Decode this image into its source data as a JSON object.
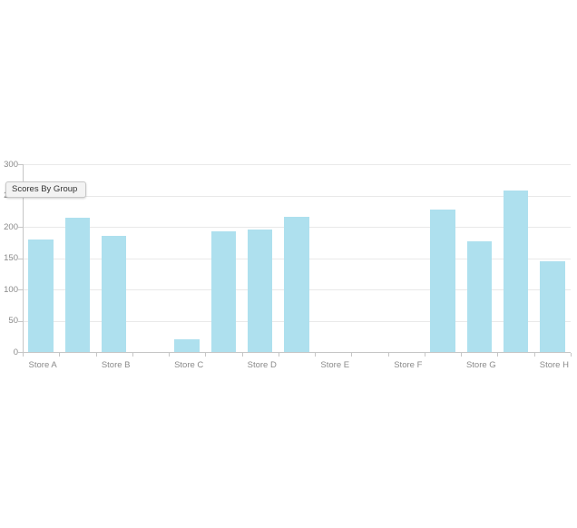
{
  "tooltip": {
    "label": "Scores By Group"
  },
  "chart_data": {
    "type": "bar",
    "title": "Scores By Group",
    "xlabel": "",
    "ylabel": "",
    "categories": [
      "Store A",
      "Store B",
      "Store C",
      "Store D",
      "Store E",
      "Store F",
      "Store G",
      "Store H"
    ],
    "slot_values": [
      180,
      215,
      185,
      null,
      20,
      193,
      195,
      216,
      null,
      null,
      null,
      228,
      177,
      258,
      145
    ],
    "slot_labels": [
      "Store A",
      "",
      "Store B",
      "",
      "Store C",
      "",
      "Store D",
      "",
      "Store E",
      "",
      "Store F",
      "",
      "Store G",
      "",
      "Store H"
    ],
    "ylim": [
      0,
      300
    ],
    "yticks": [
      0,
      50,
      100,
      150,
      200,
      250,
      300
    ],
    "grid": true,
    "legend": "none",
    "colors": {
      "bar_fill": "#aee0ee",
      "grid_line": "#e9e9e9",
      "axis_line": "#c6c6c6",
      "axis_label_text": "#8a8a8a",
      "tooltip_bg": "#f3f3f3",
      "tooltip_border": "#c8c8c8",
      "tooltip_text": "#333333",
      "background": "#ffffff"
    }
  }
}
